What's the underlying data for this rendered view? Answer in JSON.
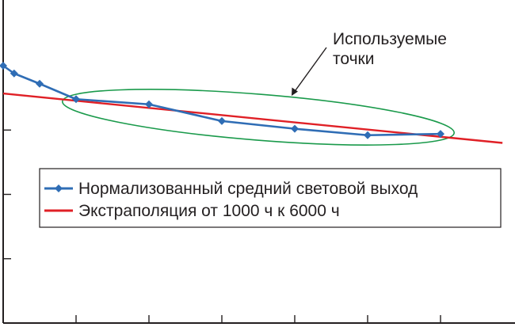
{
  "chart_data": {
    "type": "line",
    "annotation": {
      "line1": "Используемые",
      "line2": "точки"
    },
    "x_range": [
      0,
      7000
    ],
    "y_range": [
      0,
      100
    ],
    "x_ticks": [
      1000,
      2000,
      3000,
      4000,
      5000,
      6000
    ],
    "y_ticks": [
      25,
      50,
      75
    ],
    "legend_position": "center-right",
    "series": [
      {
        "name": "Нормализованный средний световой выход",
        "color": "#2f6db5",
        "marker": "diamond",
        "points": [
          {
            "x": 0,
            "y": 100
          },
          {
            "x": 150,
            "y": 97
          },
          {
            "x": 500,
            "y": 93
          },
          {
            "x": 1000,
            "y": 87
          },
          {
            "x": 2000,
            "y": 85
          },
          {
            "x": 3000,
            "y": 78.5
          },
          {
            "x": 4000,
            "y": 75.5
          },
          {
            "x": 5000,
            "y": 73
          },
          {
            "x": 6000,
            "y": 73.5
          }
        ]
      },
      {
        "name": "Экстраполяция от 1000 ч к 6000 ч",
        "color": "#e02026",
        "marker": "none",
        "points": [
          {
            "x": 0,
            "y": 89.2
          },
          {
            "x": 6850,
            "y": 70
          }
        ]
      }
    ],
    "highlight_ellipse": {
      "color": "#1a9a4b",
      "x_from": 1000,
      "x_to": 6000
    },
    "arrow_color": "#231f20",
    "grid": false
  }
}
